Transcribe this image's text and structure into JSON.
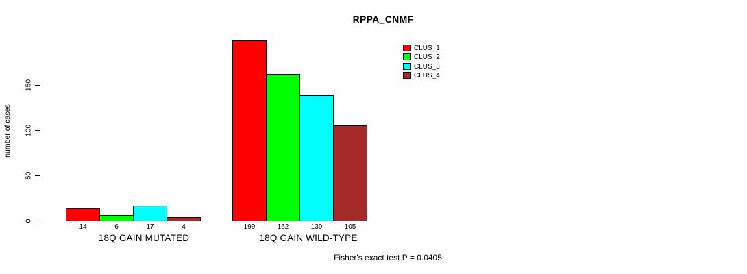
{
  "chart_data": {
    "type": "bar",
    "title": "RPPA_CNMF",
    "ylabel": "number of cases",
    "xlabel": "",
    "yticks": [
      0,
      50,
      100,
      150
    ],
    "ylim": [
      0,
      210
    ],
    "grid": false,
    "legend_position": "top-right",
    "categories": [
      "18Q GAIN MUTATED",
      "18Q GAIN WILD-TYPE"
    ],
    "series": [
      {
        "name": "CLUS_1",
        "color": "#FF0000",
        "values": [
          14,
          199
        ]
      },
      {
        "name": "CLUS_2",
        "color": "#00FF00",
        "values": [
          6,
          162
        ]
      },
      {
        "name": "CLUS_3",
        "color": "#00FFFF",
        "values": [
          17,
          139
        ]
      },
      {
        "name": "CLUS_4",
        "color": "#A52A2A",
        "values": [
          4,
          105
        ]
      }
    ],
    "bar_value_labels": {
      "18Q GAIN MUTATED": [
        14,
        6,
        17,
        4
      ],
      "18Q GAIN WILD-TYPE": [
        199,
        162,
        139,
        105
      ]
    },
    "footnote": "Fisher's exact test P = 0.0405",
    "colors": {
      "axis": "#000000",
      "text": "#000000",
      "background": "#FFFFFF"
    }
  }
}
